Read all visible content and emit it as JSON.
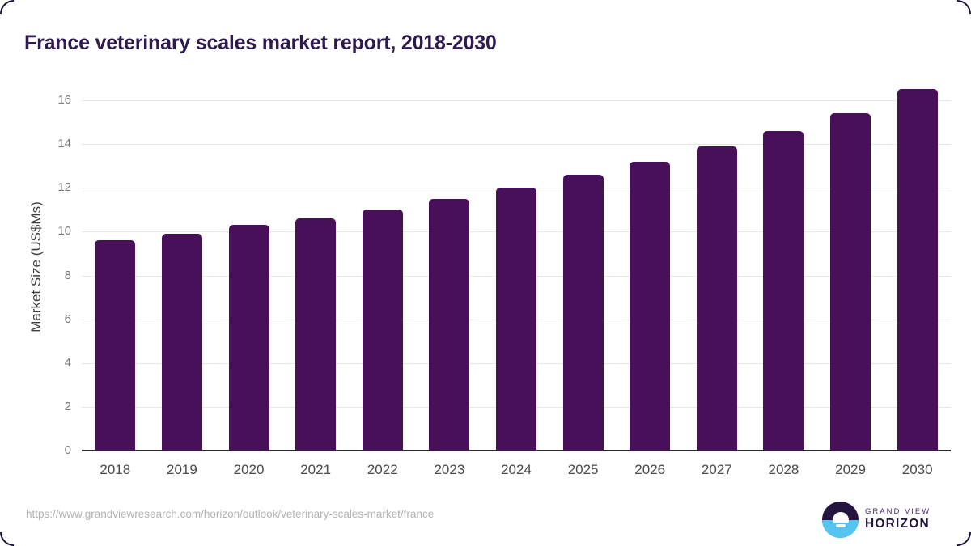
{
  "title": "France veterinary scales market report, 2018-2030",
  "chart_data": {
    "type": "bar",
    "categories": [
      "2018",
      "2019",
      "2020",
      "2021",
      "2022",
      "2023",
      "2024",
      "2025",
      "2026",
      "2027",
      "2028",
      "2029",
      "2030"
    ],
    "values": [
      9.6,
      9.9,
      10.3,
      10.6,
      11.0,
      11.5,
      12.0,
      12.6,
      13.2,
      13.9,
      14.6,
      15.4,
      16.5
    ],
    "title": "France veterinary scales market report, 2018-2030",
    "xlabel": "",
    "ylabel": "Market Size (US$Ms)",
    "ylim": [
      0,
      16.5
    ],
    "yticks": [
      0,
      2,
      4,
      6,
      8,
      10,
      12,
      14,
      16
    ],
    "grid": true,
    "legend": "none"
  },
  "footer": {
    "source_url": "https://www.grandviewresearch.com/horizon/outlook/veterinary-scales-market/france",
    "logo_line1": "GRAND VIEW",
    "logo_line2": "HORIZON"
  },
  "colors": {
    "accent_purple": "#2e1a4e",
    "bar_color": "#49105a",
    "grid_color": "#e7e7e7",
    "axis_line": "#2b2b2b",
    "ytick_color": "#7a7a7a",
    "xtick_color": "#4a4a4a",
    "ylabel_color": "#3f3f3f",
    "url_color": "#b4b4b4",
    "frame": "#1d1038",
    "logo_dark": "#241440",
    "logo_blue": "#56c4f0",
    "logo_purple": "#4b2a71"
  }
}
